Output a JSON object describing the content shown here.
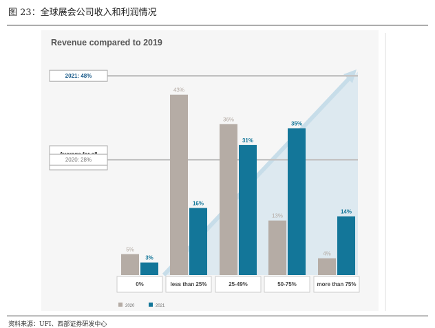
{
  "caption": "图 23：全球展会公司收入和利润情况",
  "source": "资料来源：UFI、西部证券研发中心",
  "chart_data": {
    "type": "bar",
    "title": "Revenue compared to 2019",
    "categories": [
      "0%",
      "less than 25%",
      "25-49%",
      "50-75%",
      "more than 75%"
    ],
    "series": [
      {
        "name": "2020",
        "values": [
          5,
          43,
          36,
          13,
          4
        ],
        "labels": [
          "5%",
          "43%",
          "36%",
          "13%",
          "4%"
        ],
        "color": "#b5aca5"
      },
      {
        "name": "2021",
        "values": [
          3,
          16,
          31,
          35,
          14
        ],
        "labels": [
          "3%",
          "16%",
          "31%",
          "35%",
          "14%"
        ],
        "color": "#137699"
      }
    ],
    "reference_box": "Average for all companies",
    "reference_lines": [
      {
        "label": "2021: 48%",
        "value": 48,
        "color": "#1a5b8a"
      },
      {
        "label": "2020: 28%",
        "value": 28,
        "color": "#777777"
      }
    ],
    "ylim": [
      0,
      57
    ],
    "legend": [
      "2020",
      "2021"
    ]
  }
}
